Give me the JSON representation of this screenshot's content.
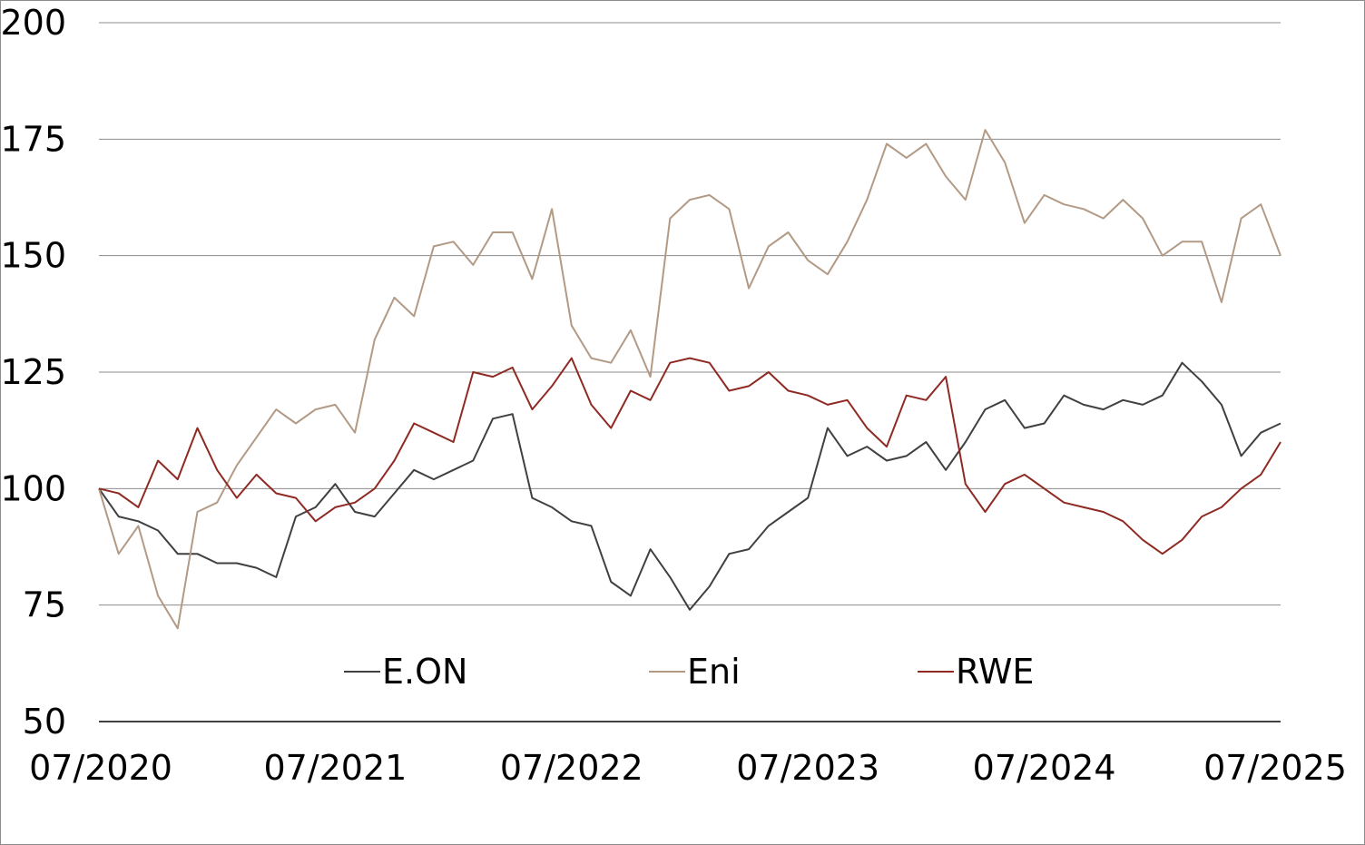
{
  "chart_data": {
    "type": "line",
    "title": "",
    "xlabel": "",
    "ylabel": "",
    "ylim": [
      50,
      200
    ],
    "y_ticks": [
      50,
      75,
      100,
      125,
      150,
      175,
      200
    ],
    "y_tick_labels": [
      "50",
      "75",
      "100",
      "125",
      "150",
      "175",
      "200"
    ],
    "x_ticks": [
      0,
      12,
      24,
      36,
      48,
      60
    ],
    "x_tick_labels": [
      "07/2020",
      "07/2021",
      "07/2022",
      "07/2023",
      "07/2024",
      "07/2025"
    ],
    "x_unit_note_hidden": true,
    "grid": "horizontal",
    "legend": "inside-bottom",
    "series": [
      {
        "name": "E.ON",
        "color": "#404040",
        "x": [
          0,
          1,
          2,
          3,
          4,
          5,
          6,
          7,
          8,
          9,
          10,
          11,
          12,
          13,
          14,
          15,
          16,
          17,
          18,
          19,
          20,
          21,
          22,
          23,
          24,
          25,
          26,
          27,
          28,
          29,
          30,
          31,
          32,
          33,
          34,
          35,
          36,
          37,
          38,
          39,
          40,
          41,
          42,
          43,
          44,
          45,
          46,
          47,
          48,
          49,
          50,
          51,
          52,
          53,
          54,
          55,
          56,
          57,
          58,
          59,
          60
        ],
        "values": [
          100,
          94,
          93,
          91,
          86,
          86,
          84,
          84,
          83,
          81,
          94,
          96,
          101,
          95,
          94,
          99,
          104,
          102,
          104,
          106,
          115,
          116,
          98,
          96,
          93,
          92,
          80,
          77,
          87,
          81,
          74,
          79,
          86,
          87,
          92,
          95,
          98,
          113,
          107,
          109,
          106,
          107,
          110,
          104,
          110,
          117,
          119,
          113,
          114,
          120,
          118,
          117,
          119,
          118,
          120,
          127,
          123,
          118,
          107,
          112,
          114
        ]
      },
      {
        "name": "Eni",
        "color": "#b29a85",
        "x": [
          0,
          1,
          2,
          3,
          4,
          5,
          6,
          7,
          8,
          9,
          10,
          11,
          12,
          13,
          14,
          15,
          16,
          17,
          18,
          19,
          20,
          21,
          22,
          23,
          24,
          25,
          26,
          27,
          28,
          29,
          30,
          31,
          32,
          33,
          34,
          35,
          36,
          37,
          38,
          39,
          40,
          41,
          42,
          43,
          44,
          45,
          46,
          47,
          48,
          49,
          50,
          51,
          52,
          53,
          54,
          55,
          56,
          57,
          58,
          59,
          60
        ],
        "values": [
          100,
          86,
          92,
          77,
          70,
          95,
          97,
          105,
          111,
          117,
          114,
          117,
          118,
          112,
          132,
          141,
          137,
          152,
          153,
          148,
          155,
          155,
          145,
          160,
          135,
          128,
          127,
          134,
          124,
          158,
          162,
          163,
          160,
          143,
          152,
          155,
          149,
          146,
          153,
          162,
          174,
          171,
          174,
          167,
          162,
          177,
          170,
          157,
          163,
          161,
          160,
          158,
          162,
          158,
          150,
          153,
          153,
          140,
          158,
          161,
          150
        ]
      },
      {
        "name": "RWE",
        "color": "#8f2a23",
        "x": [
          0,
          1,
          2,
          3,
          4,
          5,
          6,
          7,
          8,
          9,
          10,
          11,
          12,
          13,
          14,
          15,
          16,
          17,
          18,
          19,
          20,
          21,
          22,
          23,
          24,
          25,
          26,
          27,
          28,
          29,
          30,
          31,
          32,
          33,
          34,
          35,
          36,
          37,
          38,
          39,
          40,
          41,
          42,
          43,
          44,
          45,
          46,
          47,
          48,
          49,
          50,
          51,
          52,
          53,
          54,
          55,
          56,
          57,
          58,
          59,
          60
        ],
        "values": [
          100,
          99,
          96,
          106,
          102,
          113,
          104,
          98,
          103,
          99,
          98,
          93,
          96,
          97,
          100,
          106,
          114,
          112,
          110,
          125,
          124,
          126,
          117,
          122,
          128,
          118,
          113,
          121,
          119,
          127,
          128,
          127,
          121,
          122,
          125,
          121,
          120,
          118,
          119,
          113,
          109,
          120,
          119,
          124,
          101,
          95,
          101,
          103,
          100,
          97,
          96,
          95,
          93,
          89,
          86,
          89,
          94,
          96,
          100,
          103,
          110
        ]
      }
    ]
  }
}
